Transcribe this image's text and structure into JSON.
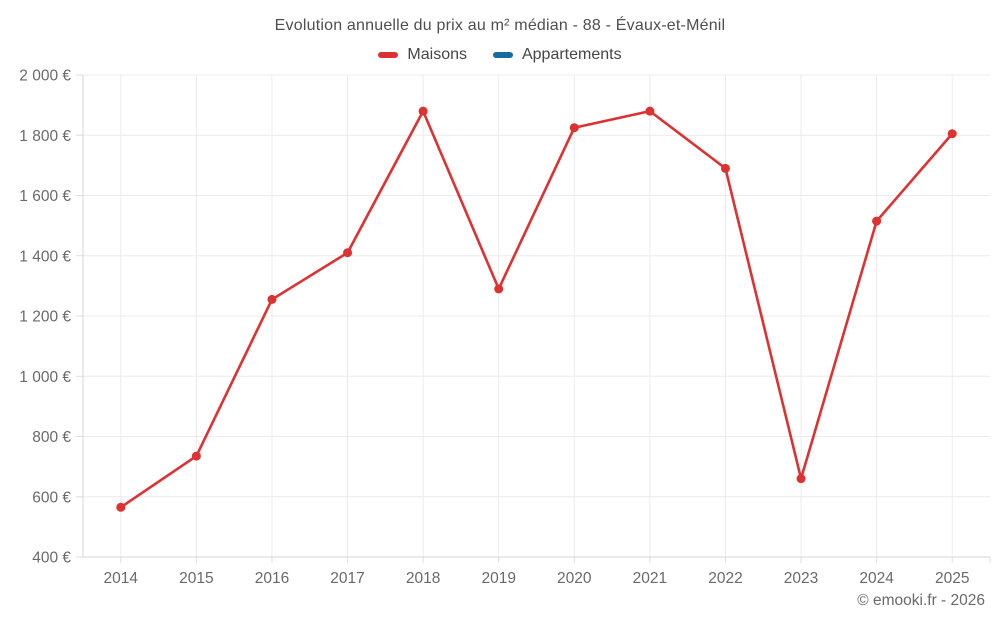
{
  "chart_data": {
    "type": "line",
    "title": "Evolution annuelle du prix au m² médian - 88 - Évaux-et-Ménil",
    "categories": [
      "2014",
      "2015",
      "2016",
      "2017",
      "2018",
      "2019",
      "2020",
      "2021",
      "2022",
      "2023",
      "2024",
      "2025"
    ],
    "series": [
      {
        "name": "Maisons",
        "color": "#de3131",
        "values": [
          565,
          735,
          1255,
          1410,
          1880,
          1290,
          1825,
          1880,
          1690,
          660,
          1515,
          1805
        ]
      },
      {
        "name": "Appartements",
        "color": "#176b9e",
        "values": []
      }
    ],
    "xlabel": "",
    "ylabel": "",
    "ylim": [
      400,
      2000
    ],
    "y_tick_step": 200,
    "y_tick_labels": [
      "400 €",
      "600 €",
      "800 €",
      "1 000 €",
      "1 200 €",
      "1 400 €",
      "1 600 €",
      "1 800 €",
      "2 000 €"
    ],
    "grid": true,
    "legend_position": "top"
  },
  "footer": {
    "watermark": "© emooki.fr - 2026"
  }
}
